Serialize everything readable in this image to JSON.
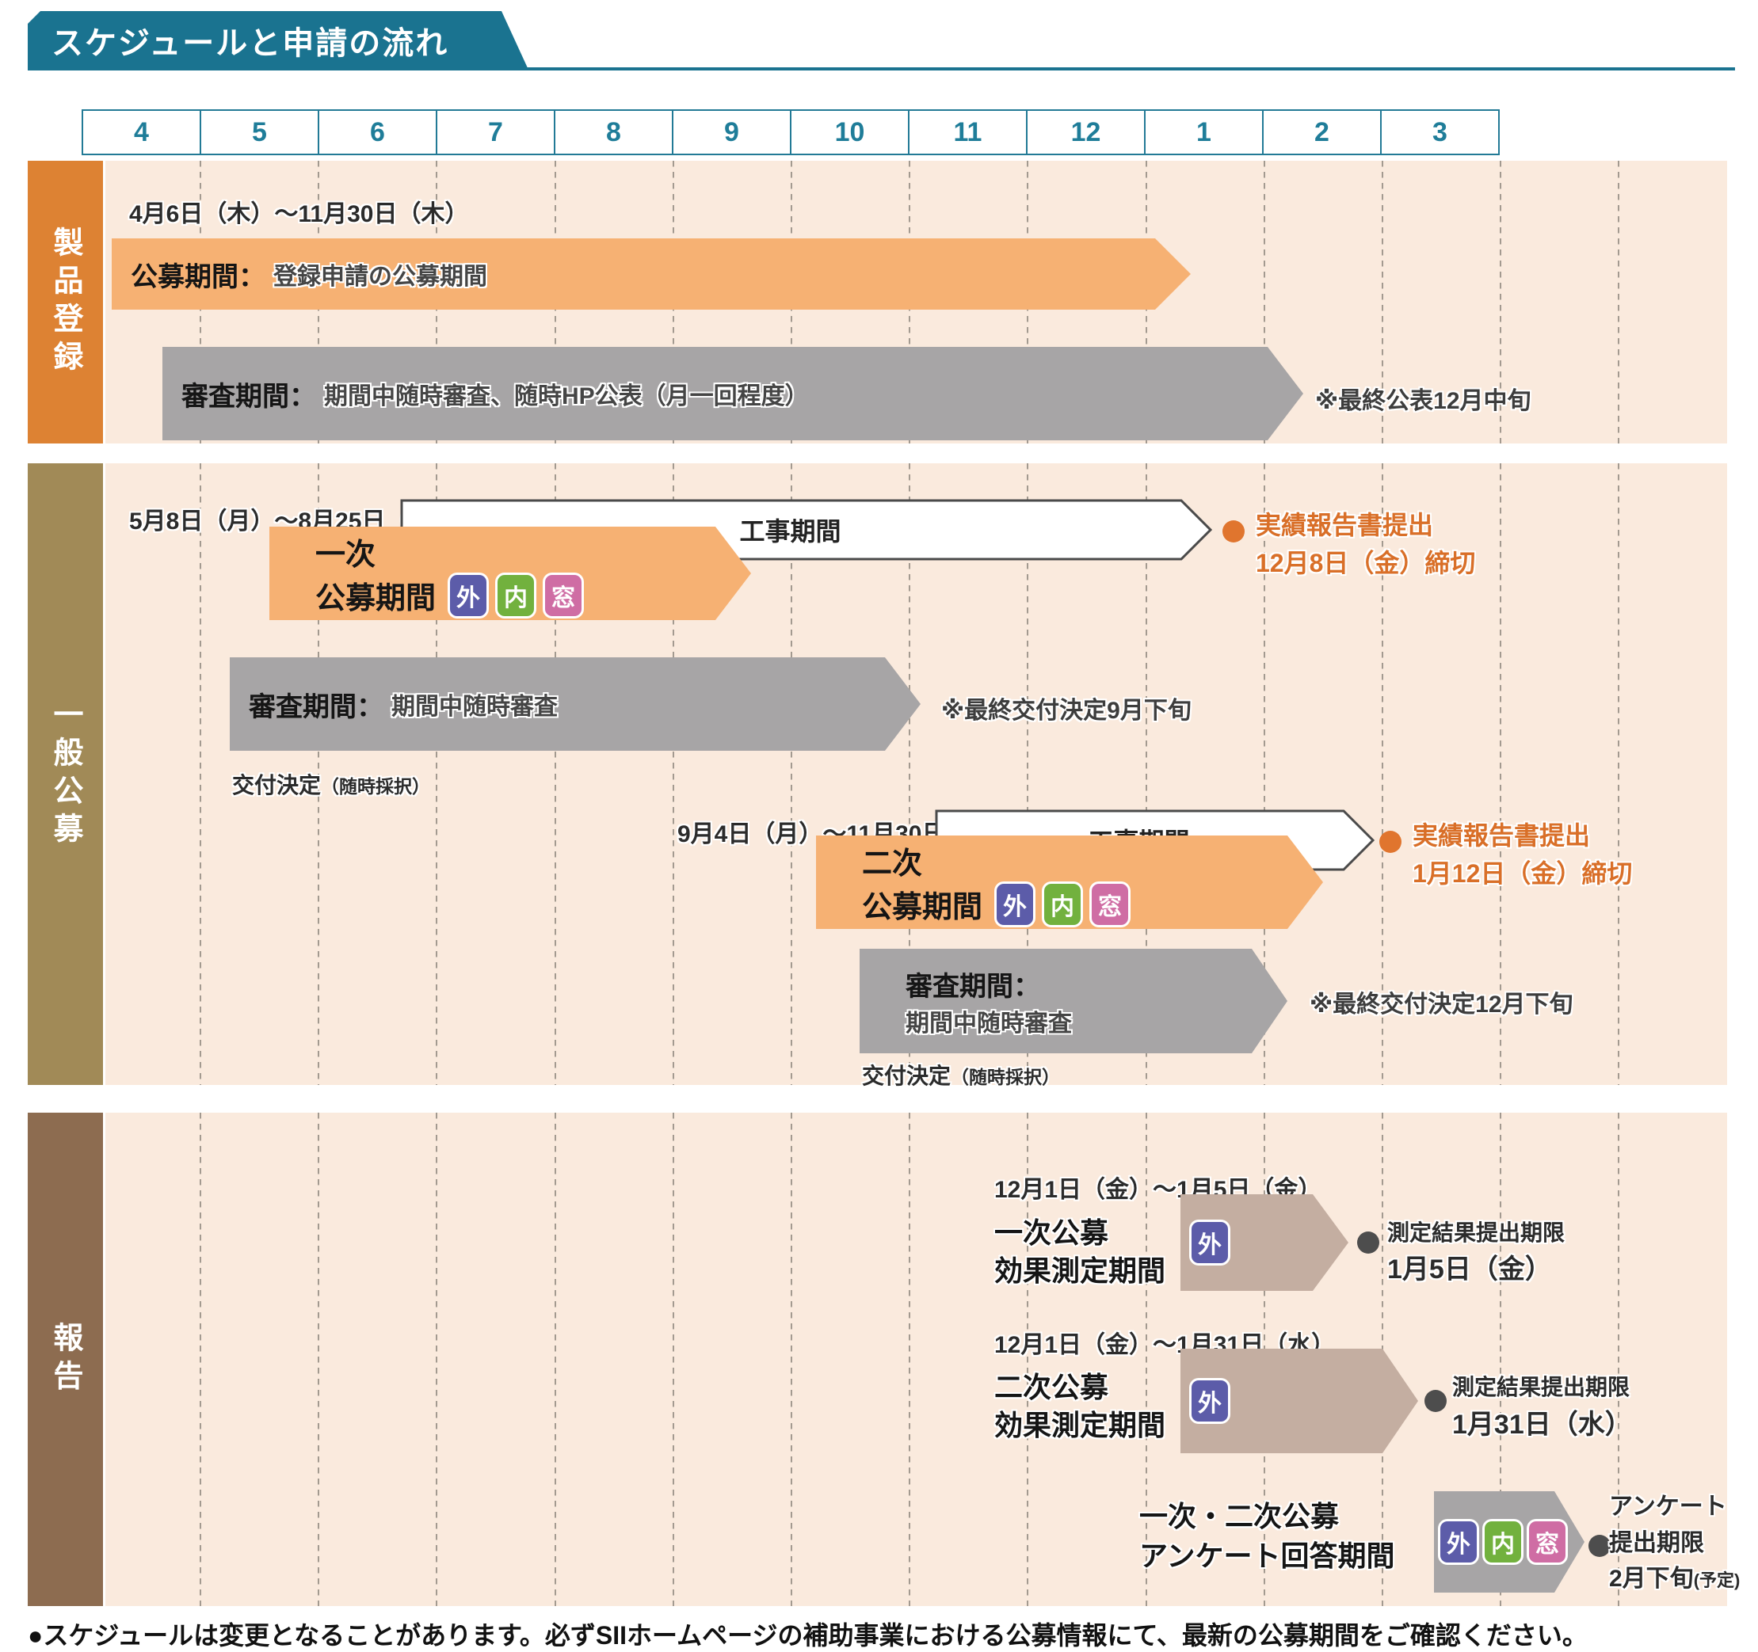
{
  "title": "スケジュールと申請の流れ",
  "months": [
    "4",
    "5",
    "6",
    "7",
    "8",
    "9",
    "10",
    "11",
    "12",
    "1",
    "2",
    "3"
  ],
  "badges": {
    "exterior": "外",
    "interior": "内",
    "window": "窓"
  },
  "colors": {
    "teal": "#1a7390",
    "panel_bg": "#faeadd",
    "label_product": "#dd8233",
    "label_general": "#a18a57",
    "label_report": "#8d6c50",
    "bar_orange": "#f6b173",
    "bar_gray": "#a7a5a6",
    "bar_taupe": "#c4aea1",
    "accent_orange": "#d96f28",
    "badge_exterior": "#5c5ca9",
    "badge_interior": "#72b13e",
    "badge_window": "#cf6da4"
  },
  "sections": {
    "product": {
      "label": "製品登録",
      "date_range": "4月6日（木）～11月30日（木）",
      "koubo_title": "公募期間：",
      "koubo_desc": "登録申請の公募期間",
      "shinsa_title": "審査期間：",
      "shinsa_desc": "期間中随時審査、随時HP公表（月一回程度）",
      "note": "※最終公表12月中旬"
    },
    "general": {
      "label": "一般公募",
      "first": {
        "date_range": "5月8日（月）～8月25日（金）",
        "round_line1": "一次",
        "round_line2": "公募期間",
        "kouji": "工事期間",
        "report_line1": "実績報告書提出",
        "report_line2": "12月8日（金）締切",
        "shinsa_title": "審査期間：",
        "shinsa_desc": "期間中随時審査",
        "note": "※最終交付決定9月下旬",
        "kofu": "交付決定",
        "kofu_sub": "（随時採択）"
      },
      "second": {
        "date_range": "9月4日（月）～11月30日（木）",
        "round_line1": "二次",
        "round_line2": "公募期間",
        "kouji": "工事期間",
        "report_line1": "実績報告書提出",
        "report_line2": "1月12日（金）締切",
        "shinsa_title": "審査期間：",
        "shinsa_desc": "期間中随時審査",
        "note": "※最終交付決定12月下旬",
        "kofu": "交付決定",
        "kofu_sub": "（随時採択）"
      }
    },
    "report": {
      "label": "報告",
      "first": {
        "date_range": "12月1日（金）～1月5日（金）",
        "label_line1": "一次公募",
        "label_line2": "効果測定期間",
        "deadline_title": "測定結果提出期限",
        "deadline_date": "1月5日（金）"
      },
      "second": {
        "date_range": "12月1日（金）～1月31日（水）",
        "label_line1": "二次公募",
        "label_line2": "効果測定期間",
        "deadline_title": "測定結果提出期限",
        "deadline_date": "1月31日（水）"
      },
      "survey": {
        "label_line1": "一次・二次公募",
        "label_line2": "アンケート回答期間",
        "deadline_line1": "アンケート",
        "deadline_line2": "提出期限",
        "deadline_line3": "2月下旬",
        "deadline_suffix": "(予定)"
      }
    }
  },
  "footer": "●スケジュールは変更となることがあります。必ずSIIホームページの補助事業における公募情報にて、最新の公募期間をご確認ください。"
}
